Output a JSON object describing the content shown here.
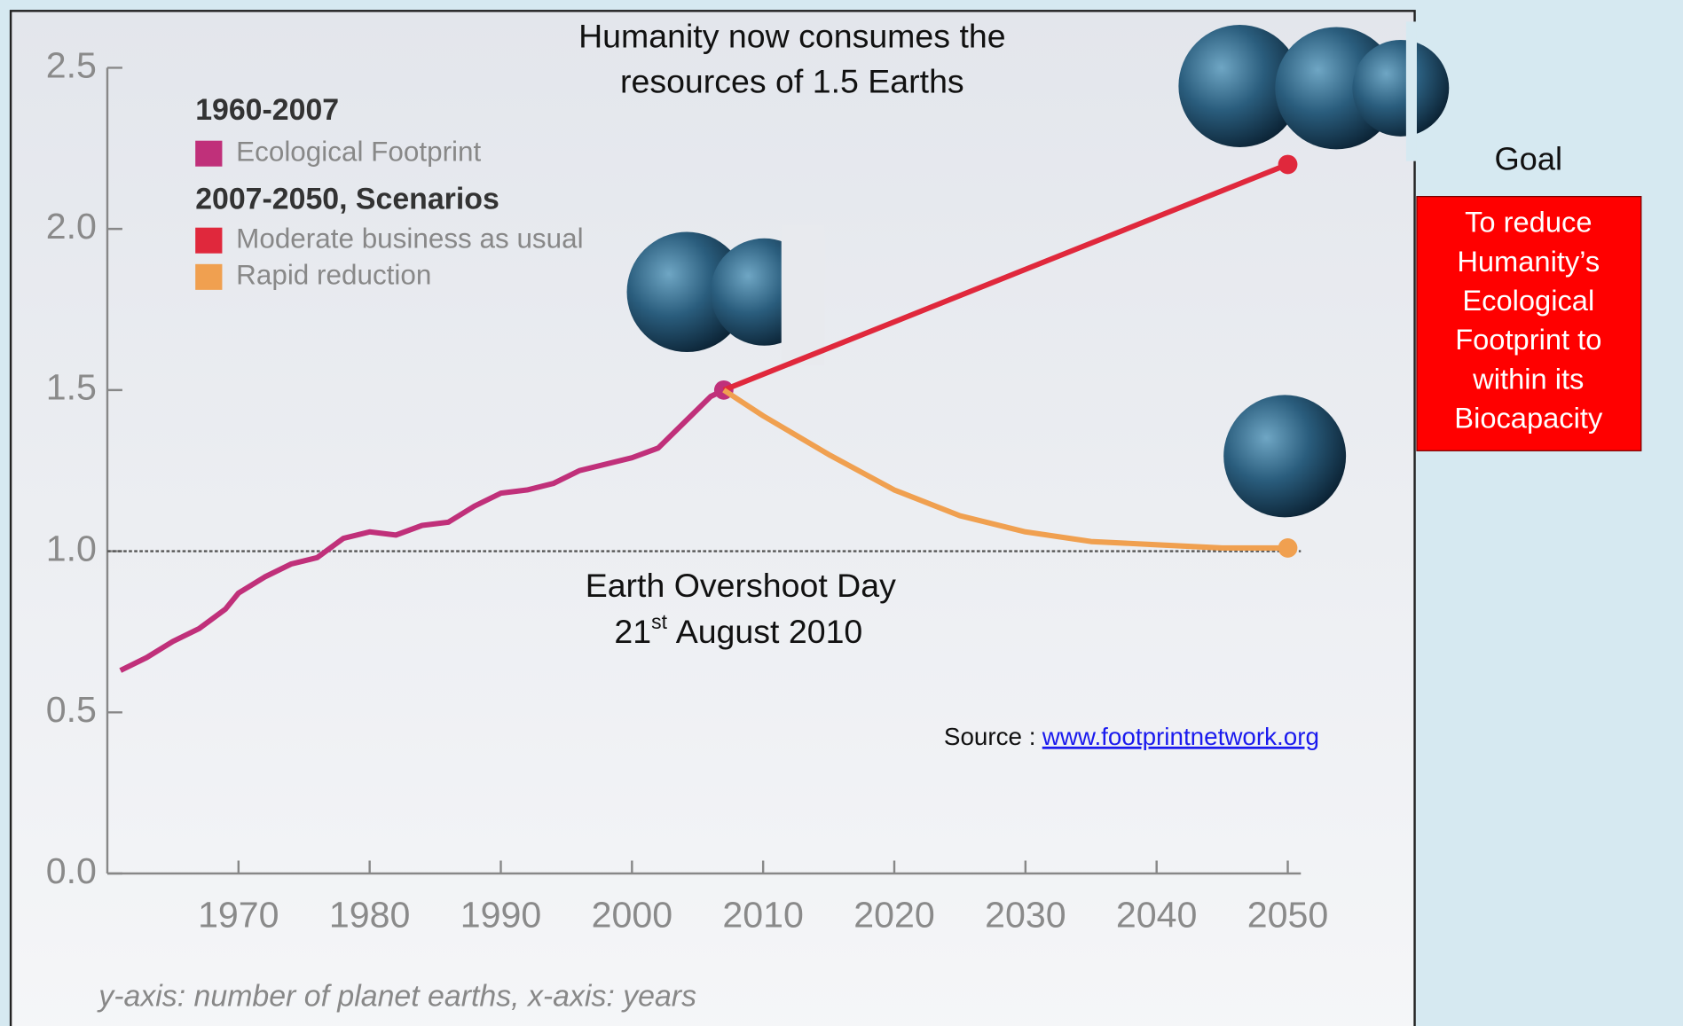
{
  "chart_data": {
    "type": "line",
    "title": [
      "Humanity now consumes the",
      "resources of 1.5 Earths"
    ],
    "legend_groups": [
      "1960-2007",
      "2007-2050, Scenarios"
    ],
    "series": [
      {
        "name": "Ecological Footprint",
        "color": "#c0307a",
        "x": [
          1961,
          1963,
          1965,
          1967,
          1969,
          1970,
          1972,
          1974,
          1976,
          1978,
          1980,
          1982,
          1984,
          1986,
          1988,
          1990,
          1992,
          1994,
          1996,
          1998,
          2000,
          2002,
          2004,
          2006,
          2007
        ],
        "values": [
          0.63,
          0.67,
          0.72,
          0.76,
          0.82,
          0.87,
          0.92,
          0.96,
          0.98,
          1.04,
          1.06,
          1.05,
          1.08,
          1.09,
          1.14,
          1.18,
          1.19,
          1.21,
          1.25,
          1.27,
          1.29,
          1.32,
          1.4,
          1.48,
          1.5
        ]
      },
      {
        "name": "Moderate business as usual",
        "color": "#e0283c",
        "x": [
          2007,
          2050
        ],
        "values": [
          1.5,
          2.2
        ]
      },
      {
        "name": "Rapid reduction",
        "color": "#f0a050",
        "x": [
          2007,
          2010,
          2015,
          2020,
          2025,
          2030,
          2035,
          2040,
          2045,
          2050
        ],
        "values": [
          1.5,
          1.42,
          1.3,
          1.19,
          1.11,
          1.06,
          1.03,
          1.02,
          1.01,
          1.01
        ]
      }
    ],
    "reference_line": 1,
    "annotation": [
      "Earth Overshoot Day",
      "21",
      "st",
      "August 2010"
    ],
    "source": {
      "label": "Source :",
      "link": "www.footprintnetwork.org"
    },
    "axis_caption": "y-axis: number of planet earths, x-axis: years",
    "xlim": [
      1960,
      2051
    ],
    "xticks": [
      1970,
      1980,
      1990,
      2000,
      2010,
      2020,
      2030,
      2040,
      2050
    ],
    "ylim": [
      0,
      2.5
    ],
    "yticks": [
      {
        "value": 0,
        "label": "0.0"
      },
      0.5,
      {
        "value": 1,
        "label": "1.0"
      },
      1.5,
      {
        "value": 2,
        "label": "2.0"
      },
      2.5
    ]
  },
  "sidebar": {
    "heading": "Goal",
    "box_lines": [
      "To reduce",
      "Humanity’s",
      "Ecological",
      "Footprint to",
      "within its",
      "Biocapacity"
    ]
  }
}
